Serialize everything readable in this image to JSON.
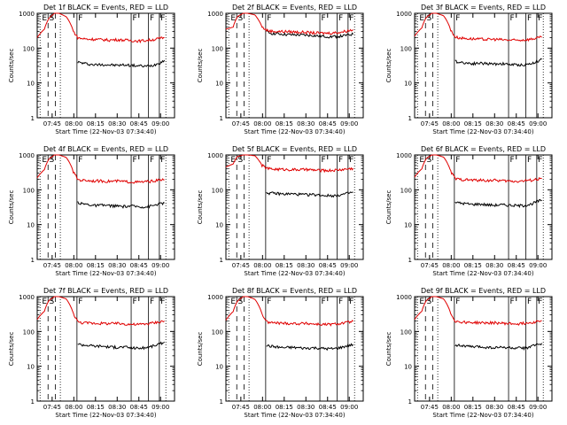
{
  "figure": {
    "ylabel": "Counts/sec",
    "xlabel": "Start Time (22-Nov-03 07:34:40)",
    "x_ticks": [
      "07:45",
      "08:00",
      "08:15",
      "08:30",
      "08:45",
      "09:00"
    ],
    "y_ticks": [
      "1",
      "10",
      "100",
      "1000"
    ],
    "colors": {
      "events": "#000000",
      "lld": "#e00000"
    }
  },
  "chart_data": [
    {
      "type": "line",
      "title": "Det 1f BLACK = Events, RED = LLD",
      "ylim": [
        1,
        1000
      ],
      "markers": [
        {
          "label": "E",
          "t": 7.5
        },
        {
          "label": "S",
          "t": 12.5
        }
      ],
      "flags": [
        {
          "label": "F",
          "t": 27.5
        },
        {
          "label": "F",
          "t": 65
        },
        {
          "label": "F",
          "t": 77
        },
        {
          "label": "F",
          "t": 84.5
        }
      ],
      "series": [
        {
          "name": "Events",
          "x": [
            28,
            30,
            35,
            40,
            45,
            50,
            55,
            60,
            65,
            70,
            75,
            80,
            85,
            88
          ],
          "y": [
            40,
            38,
            35,
            33,
            34,
            33,
            32,
            33,
            32,
            31,
            30,
            32,
            38,
            45
          ]
        },
        {
          "name": "LLD",
          "x": [
            0,
            5,
            8,
            12,
            15,
            20,
            25,
            28,
            30,
            35,
            40,
            45,
            50,
            55,
            60,
            65,
            70,
            75,
            80,
            85,
            88
          ],
          "y": [
            200,
            350,
            700,
            1000,
            1000,
            800,
            300,
            200,
            190,
            180,
            180,
            175,
            170,
            175,
            170,
            165,
            160,
            165,
            175,
            190,
            200
          ]
        }
      ]
    },
    {
      "type": "line",
      "title": "Det 2f BLACK = Events, RED = LLD",
      "ylim": [
        1,
        1000
      ],
      "markers": [
        {
          "label": "E",
          "t": 7.5
        },
        {
          "label": "S",
          "t": 12.5
        }
      ],
      "flags": [
        {
          "label": "F",
          "t": 27.5
        },
        {
          "label": "F",
          "t": 65
        },
        {
          "label": "F",
          "t": 77
        },
        {
          "label": "F",
          "t": 84.5
        }
      ],
      "series": [
        {
          "name": "Events",
          "x": [
            28,
            30,
            35,
            40,
            45,
            50,
            55,
            60,
            65,
            70,
            75,
            80,
            85,
            88
          ],
          "y": [
            300,
            270,
            260,
            250,
            240,
            240,
            235,
            230,
            220,
            215,
            215,
            220,
            240,
            250
          ]
        },
        {
          "name": "LLD",
          "x": [
            0,
            5,
            8,
            12,
            15,
            20,
            25,
            28,
            30,
            35,
            40,
            45,
            50,
            55,
            60,
            65,
            70,
            75,
            80,
            85,
            88
          ],
          "y": [
            350,
            400,
            800,
            1000,
            1000,
            900,
            400,
            330,
            310,
            300,
            300,
            295,
            290,
            285,
            275,
            270,
            270,
            275,
            290,
            320,
            340
          ]
        }
      ]
    },
    {
      "type": "line",
      "title": "Det 3f BLACK = Events, RED = LLD",
      "ylim": [
        1,
        1000
      ],
      "markers": [
        {
          "label": "E",
          "t": 7.5
        },
        {
          "label": "S",
          "t": 12.5
        }
      ],
      "flags": [
        {
          "label": "F",
          "t": 27.5
        },
        {
          "label": "F",
          "t": 65
        },
        {
          "label": "F",
          "t": 77
        },
        {
          "label": "F",
          "t": 84.5
        }
      ],
      "series": [
        {
          "name": "Events",
          "x": [
            28,
            30,
            35,
            40,
            45,
            50,
            55,
            60,
            65,
            70,
            75,
            80,
            85,
            88
          ],
          "y": [
            42,
            40,
            38,
            36,
            37,
            36,
            35,
            36,
            34,
            33,
            33,
            35,
            42,
            48
          ]
        },
        {
          "name": "LLD",
          "x": [
            0,
            5,
            8,
            12,
            15,
            20,
            25,
            28,
            30,
            35,
            40,
            45,
            50,
            55,
            60,
            65,
            70,
            75,
            80,
            85,
            88
          ],
          "y": [
            220,
            380,
            750,
            1000,
            1000,
            850,
            320,
            210,
            200,
            190,
            185,
            180,
            178,
            180,
            175,
            170,
            168,
            172,
            180,
            195,
            205
          ]
        }
      ]
    },
    {
      "type": "line",
      "title": "Det 4f BLACK = Events, RED = LLD",
      "ylim": [
        1,
        1000
      ],
      "markers": [
        {
          "label": "E",
          "t": 7.5
        },
        {
          "label": "S",
          "t": 12.5
        }
      ],
      "flags": [
        {
          "label": "F",
          "t": 27.5
        },
        {
          "label": "F",
          "t": 65
        },
        {
          "label": "F",
          "t": 77
        },
        {
          "label": "F",
          "t": 84.5
        }
      ],
      "series": [
        {
          "name": "Events",
          "x": [
            28,
            30,
            35,
            40,
            45,
            50,
            55,
            60,
            65,
            70,
            75,
            80,
            85,
            88
          ],
          "y": [
            45,
            40,
            38,
            35,
            36,
            35,
            34,
            33,
            34,
            33,
            32,
            35,
            40,
            42
          ]
        },
        {
          "name": "LLD",
          "x": [
            0,
            5,
            8,
            12,
            15,
            20,
            25,
            28,
            30,
            35,
            40,
            45,
            50,
            55,
            60,
            65,
            70,
            75,
            80,
            85,
            88
          ],
          "y": [
            220,
            380,
            750,
            1000,
            1000,
            850,
            320,
            200,
            190,
            185,
            180,
            178,
            175,
            178,
            172,
            168,
            165,
            170,
            178,
            190,
            195
          ]
        }
      ]
    },
    {
      "type": "line",
      "title": "Det 5f BLACK = Events, RED = LLD",
      "ylim": [
        1,
        1000
      ],
      "markers": [
        {
          "label": "E",
          "t": 7.5
        },
        {
          "label": "S",
          "t": 12.5
        }
      ],
      "flags": [
        {
          "label": "F",
          "t": 27.5
        },
        {
          "label": "F",
          "t": 65
        },
        {
          "label": "F",
          "t": 77
        },
        {
          "label": "F",
          "t": 84.5
        }
      ],
      "series": [
        {
          "name": "Events",
          "x": [
            28,
            30,
            35,
            40,
            45,
            50,
            55,
            60,
            65,
            70,
            75,
            80,
            85,
            88
          ],
          "y": [
            85,
            80,
            78,
            75,
            76,
            74,
            72,
            73,
            70,
            68,
            68,
            72,
            80,
            85
          ]
        },
        {
          "name": "LLD",
          "x": [
            0,
            5,
            8,
            12,
            15,
            20,
            25,
            28,
            30,
            35,
            40,
            45,
            50,
            55,
            60,
            65,
            70,
            75,
            80,
            85,
            88
          ],
          "y": [
            450,
            550,
            900,
            1000,
            1000,
            950,
            500,
            420,
            400,
            390,
            385,
            380,
            378,
            380,
            370,
            360,
            358,
            365,
            380,
            400,
            410
          ]
        }
      ]
    },
    {
      "type": "line",
      "title": "Det 6f BLACK = Events, RED = LLD",
      "ylim": [
        1,
        1000
      ],
      "markers": [
        {
          "label": "E",
          "t": 7.5
        },
        {
          "label": "S",
          "t": 12.5
        }
      ],
      "flags": [
        {
          "label": "F",
          "t": 27.5
        },
        {
          "label": "F",
          "t": 65
        },
        {
          "label": "F",
          "t": 77
        },
        {
          "label": "F",
          "t": 84.5
        }
      ],
      "series": [
        {
          "name": "Events",
          "x": [
            28,
            30,
            35,
            40,
            45,
            50,
            55,
            60,
            65,
            70,
            75,
            80,
            85,
            88
          ],
          "y": [
            45,
            42,
            40,
            38,
            39,
            37,
            36,
            37,
            36,
            35,
            35,
            38,
            46,
            50
          ]
        },
        {
          "name": "LLD",
          "x": [
            0,
            5,
            8,
            12,
            15,
            20,
            25,
            28,
            30,
            35,
            40,
            45,
            50,
            55,
            60,
            65,
            70,
            75,
            80,
            85,
            88
          ],
          "y": [
            230,
            400,
            780,
            1000,
            1000,
            870,
            330,
            210,
            200,
            195,
            190,
            188,
            185,
            188,
            182,
            178,
            175,
            180,
            188,
            200,
            210
          ]
        }
      ]
    },
    {
      "type": "line",
      "title": "Det 7f BLACK = Events, RED = LLD",
      "ylim": [
        1,
        1000
      ],
      "markers": [
        {
          "label": "E",
          "t": 7.5
        },
        {
          "label": "S",
          "t": 12.5
        }
      ],
      "flags": [
        {
          "label": "F",
          "t": 27.5
        },
        {
          "label": "F",
          "t": 65
        },
        {
          "label": "F",
          "t": 77
        },
        {
          "label": "F",
          "t": 84.5
        }
      ],
      "series": [
        {
          "name": "Events",
          "x": [
            28,
            30,
            35,
            40,
            45,
            50,
            55,
            60,
            65,
            70,
            75,
            80,
            85,
            88
          ],
          "y": [
            45,
            42,
            40,
            38,
            38,
            36,
            35,
            36,
            34,
            33,
            34,
            38,
            44,
            50
          ]
        },
        {
          "name": "LLD",
          "x": [
            0,
            5,
            8,
            12,
            15,
            20,
            25,
            28,
            30,
            35,
            40,
            45,
            50,
            55,
            60,
            65,
            70,
            75,
            80,
            85,
            88
          ],
          "y": [
            220,
            380,
            760,
            1000,
            1000,
            860,
            320,
            190,
            180,
            175,
            172,
            170,
            168,
            170,
            165,
            160,
            158,
            165,
            175,
            190,
            200
          ]
        }
      ]
    },
    {
      "type": "line",
      "title": "Det 8f BLACK = Events, RED = LLD",
      "ylim": [
        1,
        1000
      ],
      "markers": [
        {
          "label": "E",
          "t": 7.5
        },
        {
          "label": "S",
          "t": 12.5
        }
      ],
      "flags": [
        {
          "label": "F",
          "t": 27.5
        },
        {
          "label": "F",
          "t": 65
        },
        {
          "label": "F",
          "t": 77
        },
        {
          "label": "F",
          "t": 84.5
        }
      ],
      "series": [
        {
          "name": "Events",
          "x": [
            28,
            30,
            35,
            40,
            45,
            50,
            55,
            60,
            65,
            70,
            75,
            80,
            85,
            88
          ],
          "y": [
            40,
            38,
            36,
            34,
            35,
            34,
            33,
            34,
            33,
            32,
            32,
            35,
            40,
            42
          ]
        },
        {
          "name": "LLD",
          "x": [
            0,
            5,
            8,
            12,
            15,
            20,
            25,
            28,
            30,
            35,
            40,
            45,
            50,
            55,
            60,
            65,
            70,
            75,
            80,
            85,
            88
          ],
          "y": [
            210,
            370,
            740,
            1000,
            1000,
            840,
            310,
            190,
            180,
            175,
            172,
            170,
            168,
            170,
            165,
            160,
            158,
            162,
            172,
            185,
            195
          ]
        }
      ]
    },
    {
      "type": "line",
      "title": "Det 9f BLACK = Events, RED = LLD",
      "ylim": [
        1,
        1000
      ],
      "markers": [
        {
          "label": "E",
          "t": 7.5
        },
        {
          "label": "S",
          "t": 12.5
        }
      ],
      "flags": [
        {
          "label": "F",
          "t": 27.5
        },
        {
          "label": "F",
          "t": 65
        },
        {
          "label": "F",
          "t": 77
        },
        {
          "label": "F",
          "t": 84.5
        }
      ],
      "series": [
        {
          "name": "Events",
          "x": [
            28,
            30,
            35,
            40,
            45,
            50,
            55,
            60,
            65,
            70,
            75,
            80,
            85,
            88
          ],
          "y": [
            42,
            40,
            38,
            36,
            36,
            35,
            34,
            35,
            34,
            33,
            33,
            36,
            42,
            46
          ]
        },
        {
          "name": "LLD",
          "x": [
            0,
            5,
            8,
            12,
            15,
            20,
            25,
            28,
            30,
            35,
            40,
            45,
            50,
            55,
            60,
            65,
            70,
            75,
            80,
            85,
            88
          ],
          "y": [
            220,
            380,
            760,
            1000,
            1000,
            860,
            320,
            200,
            190,
            185,
            180,
            178,
            175,
            178,
            172,
            168,
            165,
            170,
            180,
            195,
            205
          ]
        }
      ]
    }
  ]
}
